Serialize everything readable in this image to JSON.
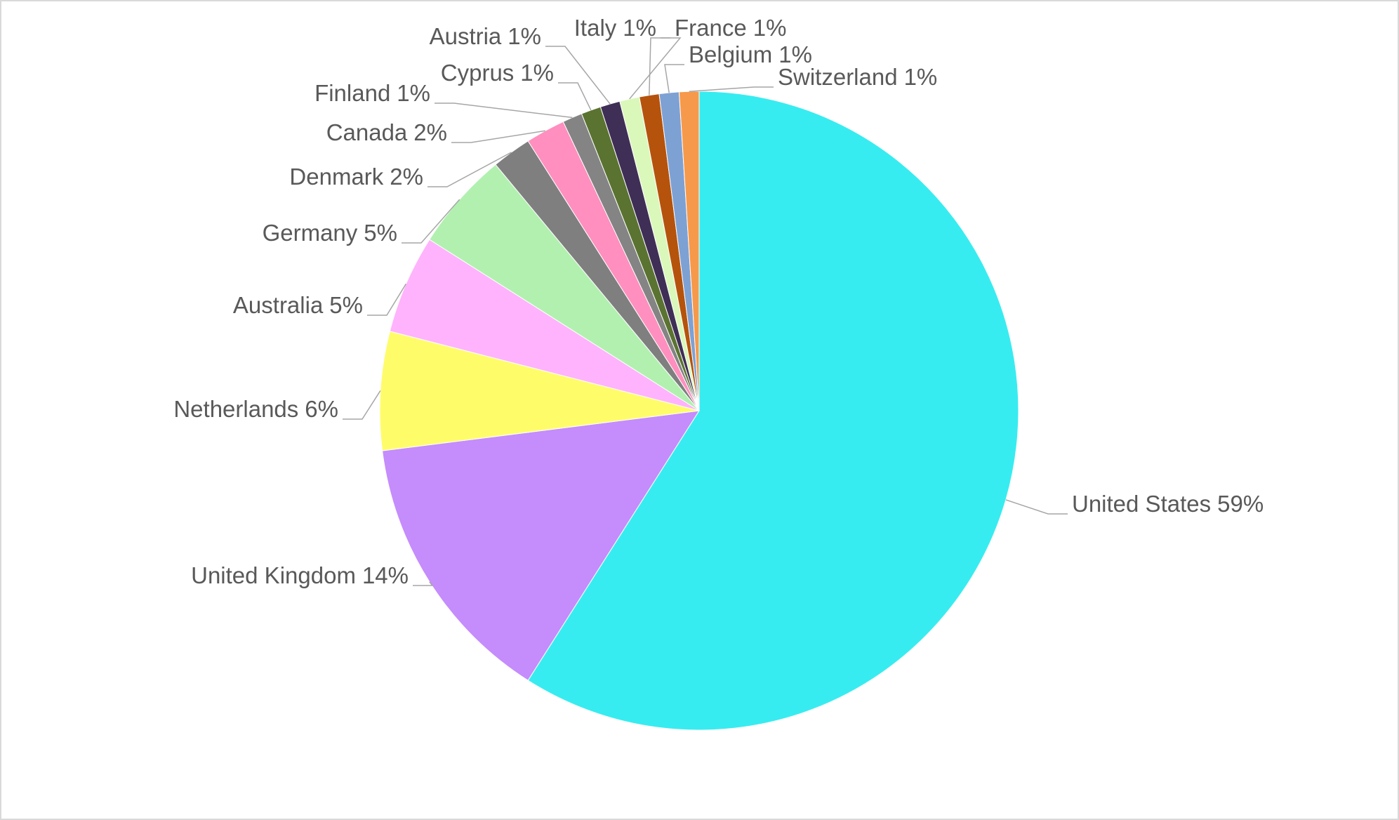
{
  "chart_data": {
    "type": "pie",
    "categories": [
      "United States",
      "United Kingdom",
      "Netherlands",
      "Australia",
      "Germany",
      "Denmark",
      "Canada",
      "Finland",
      "Cyprus",
      "Austria",
      "Italy",
      "France",
      "Belgium",
      "Switzerland"
    ],
    "values": [
      59,
      14,
      6,
      5,
      5,
      2,
      2,
      1,
      1,
      1,
      1,
      1,
      1,
      1
    ],
    "value_labels": [
      "59%",
      "14%",
      "6%",
      "5%",
      "5%",
      "2%",
      "2%",
      "1%",
      "1%",
      "1%",
      "1%",
      "1%",
      "1%",
      "1%"
    ],
    "colors": [
      "#37ecf0",
      "#c58cfc",
      "#fffc6a",
      "#ffb3fc",
      "#b2f0b0",
      "#7f7f7f",
      "#ff8fbe",
      "#848484",
      "#5a7331",
      "#3f2e56",
      "#daf8ba",
      "#b5530c",
      "#7ea1d4",
      "#f7994a"
    ]
  }
}
